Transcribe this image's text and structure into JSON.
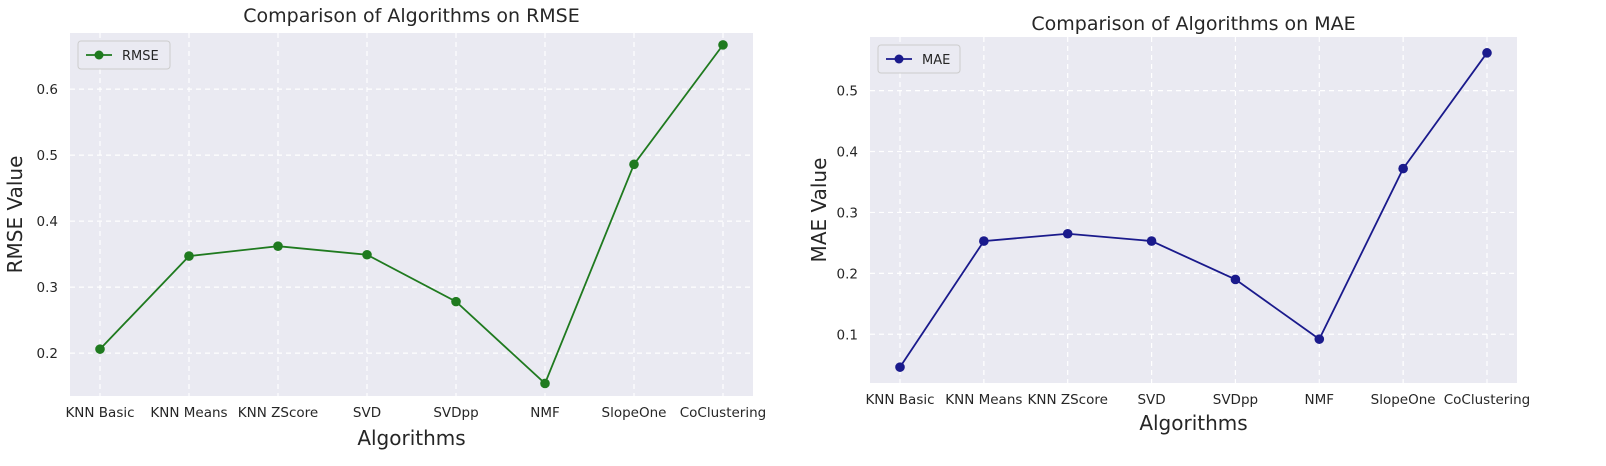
{
  "chart_data": [
    {
      "type": "line",
      "title": "Comparison of Algorithms on RMSE",
      "xlabel": "Algorithms",
      "ylabel": "RMSE Value",
      "categories": [
        "KNN Basic",
        "KNN Means",
        "KNN ZScore",
        "SVD",
        "SVDpp",
        "NMF",
        "SlopeOne",
        "CoClustering"
      ],
      "series": [
        {
          "name": "RMSE",
          "color": "#1f7a1f",
          "values": [
            0.206,
            0.347,
            0.362,
            0.349,
            0.278,
            0.154,
            0.486,
            0.667
          ]
        }
      ],
      "yticks": [
        0.2,
        0.3,
        0.4,
        0.5,
        0.6
      ],
      "ylim": [
        0.135,
        0.685
      ],
      "grid": true,
      "legend": "top-left"
    },
    {
      "type": "line",
      "title": "Comparison of Algorithms on MAE",
      "xlabel": "Algorithms",
      "ylabel": "MAE Value",
      "categories": [
        "KNN Basic",
        "KNN Means",
        "KNN ZScore",
        "SVD",
        "SVDpp",
        "NMF",
        "SlopeOne",
        "CoClustering"
      ],
      "series": [
        {
          "name": "MAE",
          "color": "#1a1a8c",
          "values": [
            0.046,
            0.253,
            0.265,
            0.253,
            0.19,
            0.092,
            0.372,
            0.562
          ]
        }
      ],
      "yticks": [
        0.1,
        0.2,
        0.3,
        0.4,
        0.5
      ],
      "ylim": [
        0.02,
        0.588
      ],
      "grid": true,
      "legend": "top-left"
    }
  ]
}
